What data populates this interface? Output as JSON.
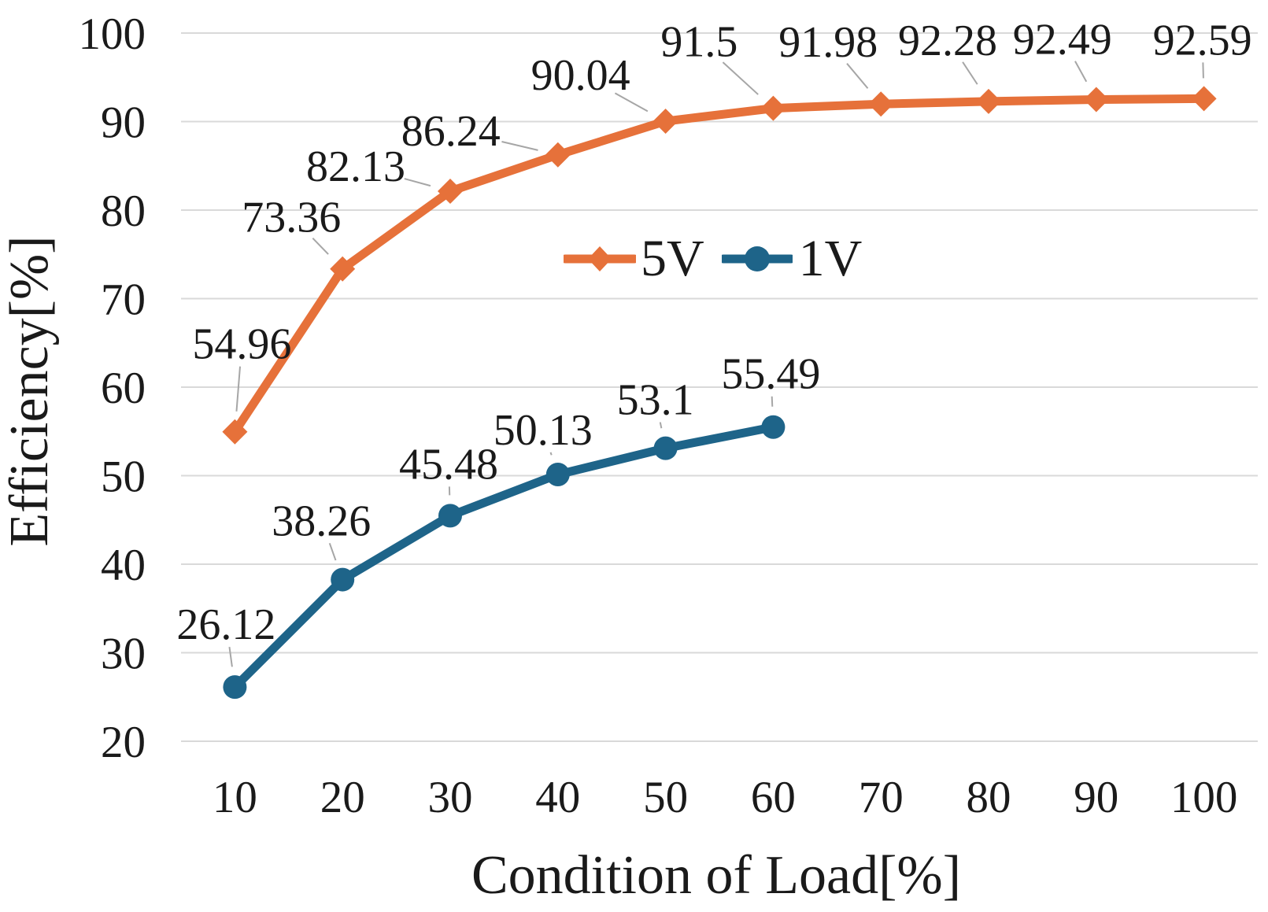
{
  "figure": {
    "background_color": "#ffffff",
    "text_color": "#1a1a1a",
    "gridline_color": "#d9d9d9",
    "leader_line_color": "#a6a6a6"
  },
  "chart_data": {
    "type": "line",
    "title": "",
    "xlabel": "Condition of Load[%]",
    "ylabel": "Efficiency[%]",
    "x_categories": [
      10,
      20,
      30,
      40,
      50,
      60,
      70,
      80,
      90,
      100
    ],
    "y_ticks": [
      20,
      30,
      40,
      50,
      60,
      70,
      80,
      90,
      100
    ],
    "ylim": [
      20,
      100
    ],
    "grid": "horizontal-only",
    "data_labels_visible": true,
    "legend_position": "inside-upper-middle",
    "series": [
      {
        "name": "5V",
        "color": "#e6713a",
        "marker": "diamond",
        "x": [
          10,
          20,
          30,
          40,
          50,
          60,
          70,
          80,
          90,
          100
        ],
        "values": [
          54.96,
          73.36,
          82.13,
          86.24,
          90.04,
          91.5,
          91.98,
          92.28,
          92.49,
          92.59
        ],
        "labels": [
          "54.96",
          "73.36",
          "82.13",
          "86.24",
          "90.04",
          "91.5",
          "91.98",
          "92.28",
          "92.49",
          "92.59"
        ]
      },
      {
        "name": "1V",
        "color": "#1e6489",
        "marker": "circle",
        "x": [
          10,
          20,
          30,
          40,
          50,
          60
        ],
        "values": [
          26.12,
          38.26,
          45.48,
          50.13,
          53.1,
          55.49
        ],
        "labels": [
          "26.12",
          "38.26",
          "45.48",
          "50.13",
          "53.1",
          "55.49"
        ]
      }
    ]
  }
}
